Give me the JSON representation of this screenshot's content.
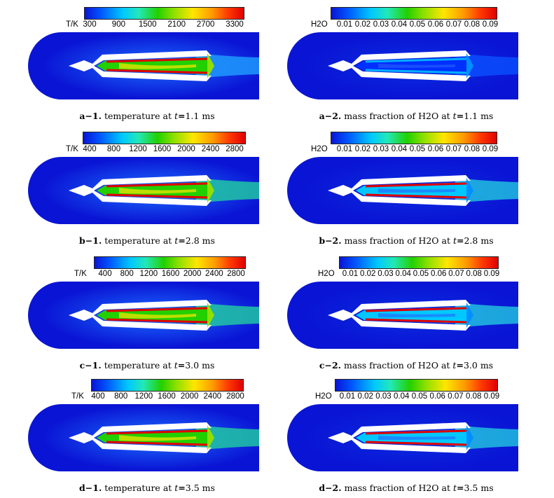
{
  "panels": [
    {
      "id": "a-1",
      "colorbar": {
        "unit": "T/K",
        "ticks": [
          "300",
          "900",
          "1500",
          "2100",
          "2700",
          "3300"
        ]
      },
      "caption": {
        "label": "a−1.",
        "quantity": "temperature",
        "time": "1.1",
        "unit": "ms"
      }
    },
    {
      "id": "a-2",
      "colorbar": {
        "unit": "H2O",
        "ticks": [
          "0.01",
          "0.02",
          "0.03",
          "0.04",
          "0.05",
          "0.06",
          "0.07",
          "0.08",
          "0.09"
        ]
      },
      "caption": {
        "label": "a−2.",
        "quantity": "mass fraction of H2O",
        "time": "1.1",
        "unit": "ms"
      }
    },
    {
      "id": "b-1",
      "colorbar": {
        "unit": "T/K",
        "ticks": [
          "400",
          "800",
          "1200",
          "1600",
          "2000",
          "2400",
          "2800"
        ]
      },
      "caption": {
        "label": "b−1.",
        "quantity": "temperature",
        "time": "2.8",
        "unit": "ms"
      }
    },
    {
      "id": "b-2",
      "colorbar": {
        "unit": "H2O",
        "ticks": [
          "0.01",
          "0.02",
          "0.03",
          "0.04",
          "0.05",
          "0.06",
          "0.07",
          "0.08",
          "0.09"
        ]
      },
      "caption": {
        "label": "b−2.",
        "quantity": "mass fraction of H2O",
        "time": "2.8",
        "unit": "ms"
      }
    },
    {
      "id": "c-1",
      "colorbar": {
        "unit": "T/K",
        "ticks": [
          "400",
          "800",
          "1200",
          "1600",
          "2000",
          "2400",
          "2800"
        ]
      },
      "caption": {
        "label": "c−1.",
        "quantity": "temperature",
        "time": "3.0",
        "unit": "ms"
      }
    },
    {
      "id": "c-2",
      "colorbar": {
        "unit": "H2O",
        "ticks": [
          "0.01",
          "0.02",
          "0.03",
          "0.04",
          "0.05",
          "0.06",
          "0.07",
          "0.08",
          "0.09"
        ]
      },
      "caption": {
        "label": "c−2.",
        "quantity": "mass fraction of H2O",
        "time": "3.0",
        "unit": "ms"
      }
    },
    {
      "id": "d-1",
      "colorbar": {
        "unit": "T/K",
        "ticks": [
          "400",
          "800",
          "1200",
          "1600",
          "2000",
          "2400",
          "2800"
        ]
      },
      "caption": {
        "label": "d−1.",
        "quantity": "temperature",
        "time": "3.5",
        "unit": "ms"
      }
    },
    {
      "id": "d-2",
      "colorbar": {
        "unit": "H2O",
        "ticks": [
          "0.01",
          "0.02",
          "0.03",
          "0.04",
          "0.05",
          "0.06",
          "0.07",
          "0.08",
          "0.09"
        ]
      },
      "caption": {
        "label": "d−2.",
        "quantity": "mass fraction of H2O",
        "time": "3.5",
        "unit": "ms"
      }
    }
  ],
  "colors": {
    "field_background": "#0a14d4",
    "hot": "#e00000",
    "mid": "#22d000",
    "cool": "#00c8ff"
  }
}
